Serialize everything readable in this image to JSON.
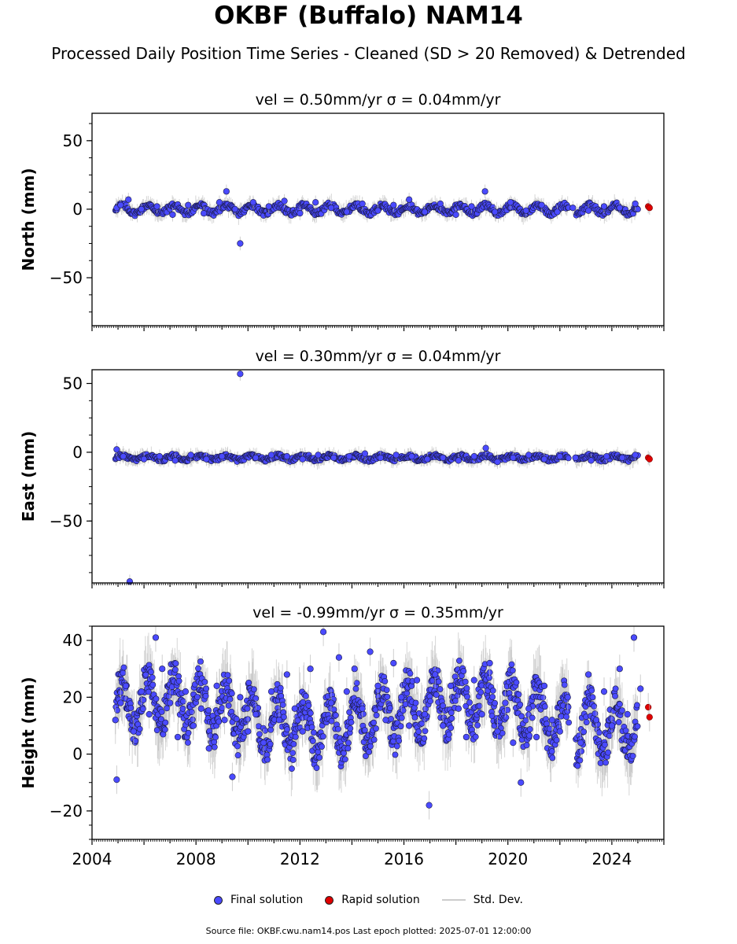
{
  "header": {
    "title": "OKBF (Buffalo) NAM14",
    "subtitle": "Processed Daily Position Time Series - Cleaned (SD > 20 Removed) & Detrended"
  },
  "legend": {
    "final": "Final solution",
    "rapid": "Rapid solution",
    "stddev": "Std. Dev."
  },
  "footer": {
    "source": "Source file: OKBF.cwu.nam14.pos  Last epoch plotted: 2025-07-01 12:00:00"
  },
  "colors": {
    "final": "#4a4aff",
    "rapid": "#e00000",
    "stddev": "#bbbbbb",
    "marker_edge": "#1a1a40"
  },
  "chart_data": [
    {
      "type": "scatter",
      "panel": "north",
      "title": "vel = 0.50mm/yr   σ = 0.04mm/yr",
      "ylabel": "North (mm)",
      "xlim": [
        2004.0,
        2026.0
      ],
      "ylim": [
        -85,
        70
      ],
      "yticks": [
        -50,
        0,
        50
      ],
      "x_tick_labels": [],
      "grid": false,
      "series": [
        {
          "name": "Final solution",
          "x": [
            2004.95,
            2005.1,
            2005.4,
            2005.9,
            2006.5,
            2007.1,
            2007.7,
            2008.3,
            2008.9,
            2009.17,
            2009.5,
            2009.7,
            2010.2,
            2010.8,
            2011.4,
            2012.0,
            2012.6,
            2013.2,
            2013.8,
            2014.4,
            2015.0,
            2015.6,
            2016.2,
            2016.8,
            2017.4,
            2018.0,
            2018.6,
            2019.12,
            2019.5,
            2020.1,
            2020.7,
            2021.3,
            2021.9,
            2022.5,
            2023.1,
            2023.7,
            2024.3,
            2024.9
          ],
          "y": [
            1,
            3,
            7,
            0,
            2,
            -4,
            3,
            -3,
            5,
            13,
            0,
            -25,
            5,
            2,
            6,
            -3,
            5,
            1,
            -2,
            4,
            -1,
            3,
            7,
            -2,
            4,
            -4,
            2,
            13,
            -2,
            5,
            -1,
            3,
            -2,
            1,
            -1,
            2,
            1,
            4
          ]
        },
        {
          "name": "Rapid solution",
          "x": [
            2025.4,
            2025.45
          ],
          "y": [
            2,
            1
          ]
        }
      ]
    },
    {
      "type": "scatter",
      "panel": "east",
      "title": "vel = 0.30mm/yr   σ = 0.04mm/yr",
      "ylabel": "East (mm)",
      "xlim": [
        2004.0,
        2026.0
      ],
      "ylim": [
        -95,
        60
      ],
      "yticks": [
        -50,
        0,
        50
      ],
      "x_tick_labels": [],
      "grid": false,
      "series": [
        {
          "name": "Final solution",
          "x": [
            2004.95,
            2005.2,
            2005.45,
            2006.0,
            2006.6,
            2007.2,
            2007.8,
            2008.4,
            2009.0,
            2009.7,
            2010.3,
            2010.9,
            2011.5,
            2012.1,
            2012.7,
            2013.3,
            2013.9,
            2014.5,
            2015.1,
            2015.7,
            2016.3,
            2016.9,
            2017.5,
            2018.1,
            2018.7,
            2019.15,
            2019.6,
            2020.2,
            2020.8,
            2021.4,
            2022.0,
            2022.6,
            2023.2,
            2023.8,
            2024.4,
            2024.9
          ],
          "y": [
            2,
            -3,
            -94,
            -5,
            -3,
            -6,
            -2,
            -5,
            -3,
            57,
            -4,
            -2,
            -3,
            -5,
            -2,
            -4,
            -3,
            -1,
            -4,
            -2,
            -3,
            -5,
            -4,
            -6,
            -3,
            3,
            -7,
            -4,
            -2,
            -5,
            -3,
            -4,
            -6,
            -3,
            -4,
            -2
          ]
        },
        {
          "name": "Rapid solution",
          "x": [
            2025.4,
            2025.45
          ],
          "y": [
            -4,
            -5
          ]
        }
      ]
    },
    {
      "type": "scatter",
      "panel": "height",
      "title": "vel = -0.99mm/yr   σ = 0.35mm/yr",
      "ylabel": "Height (mm)",
      "xlim": [
        2004.0,
        2026.0
      ],
      "ylim": [
        -30,
        45
      ],
      "yticks": [
        -20,
        0,
        20,
        40
      ],
      "x_tick_labels": [
        "2004",
        "2008",
        "2012",
        "2016",
        "2020",
        "2024"
      ],
      "grid": false,
      "series": [
        {
          "name": "Final solution",
          "x": [
            2004.9,
            2004.95,
            2005.1,
            2005.3,
            2005.6,
            2005.9,
            2006.2,
            2006.45,
            2006.7,
            2007.0,
            2007.3,
            2007.6,
            2007.9,
            2008.2,
            2008.5,
            2008.8,
            2009.1,
            2009.4,
            2009.7,
            2010.0,
            2010.3,
            2010.6,
            2010.9,
            2011.2,
            2011.5,
            2011.8,
            2012.1,
            2012.4,
            2012.9,
            2013.2,
            2013.5,
            2013.8,
            2014.1,
            2014.4,
            2014.7,
            2015.0,
            2015.3,
            2015.6,
            2015.9,
            2016.2,
            2016.5,
            2016.8,
            2016.97,
            2017.2,
            2017.5,
            2017.8,
            2018.1,
            2018.4,
            2018.7,
            2019.0,
            2019.3,
            2019.6,
            2019.9,
            2020.2,
            2020.5,
            2020.8,
            2021.1,
            2021.4,
            2021.7,
            2022.0,
            2022.3,
            2022.8,
            2023.1,
            2023.4,
            2023.7,
            2024.0,
            2024.3,
            2024.6,
            2024.85,
            2025.1
          ],
          "y": [
            12,
            -9,
            18,
            24,
            8,
            22,
            14,
            41,
            30,
            18,
            6,
            22,
            10,
            16,
            2,
            24,
            12,
            -8,
            20,
            8,
            14,
            4,
            22,
            12,
            28,
            16,
            8,
            30,
            43,
            18,
            34,
            22,
            30,
            16,
            36,
            24,
            12,
            32,
            20,
            10,
            26,
            14,
            -18,
            28,
            10,
            24,
            16,
            6,
            26,
            14,
            32,
            8,
            18,
            4,
            -10,
            16,
            6,
            24,
            12,
            8,
            20,
            4,
            28,
            12,
            22,
            10,
            30,
            14,
            41,
            23
          ]
        },
        {
          "name": "Rapid solution",
          "x": [
            2025.4,
            2025.45
          ],
          "y": [
            16.5,
            13
          ]
        }
      ]
    }
  ]
}
